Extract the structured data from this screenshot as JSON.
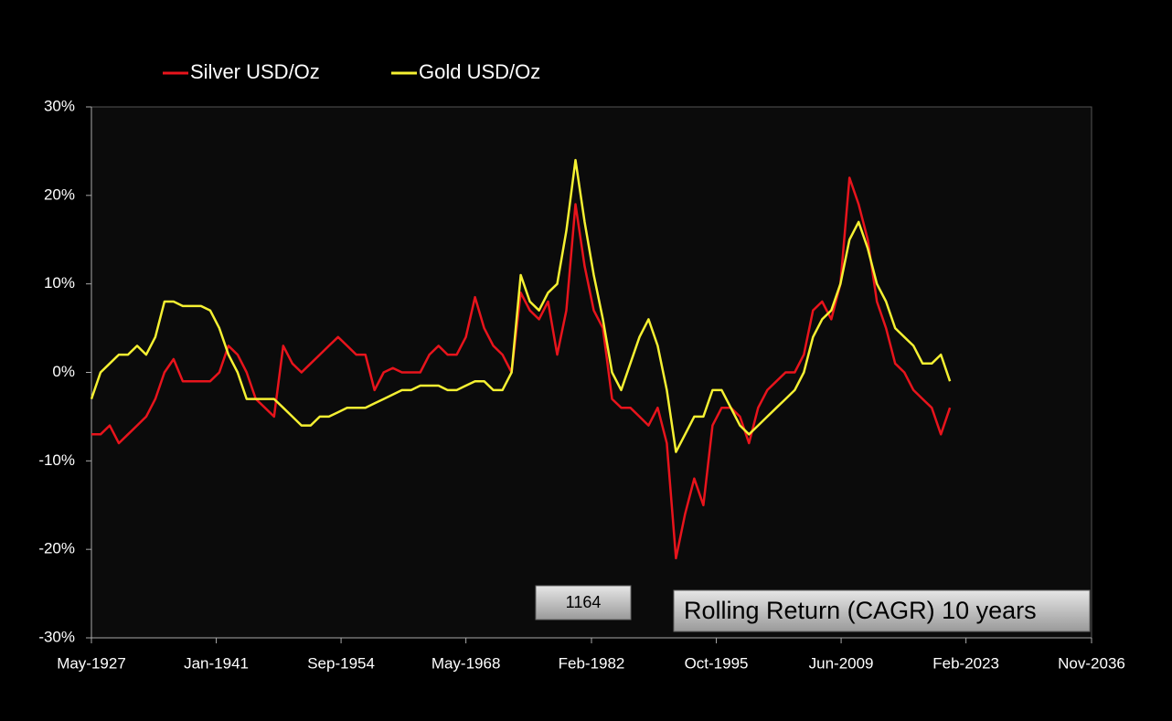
{
  "chart_data": {
    "type": "line",
    "annotations": [
      "1164",
      "Rolling Return (CAGR) 10 years"
    ],
    "x": [
      "1927-05",
      "1928-05",
      "1929-05",
      "1930-05",
      "1931-05",
      "1932-05",
      "1933-05",
      "1934-05",
      "1935-05",
      "1936-05",
      "1937-05",
      "1938-05",
      "1939-05",
      "1940-05",
      "1941-05",
      "1942-05",
      "1943-05",
      "1944-05",
      "1945-05",
      "1946-05",
      "1947-05",
      "1948-05",
      "1949-05",
      "1950-05",
      "1951-05",
      "1952-05",
      "1953-05",
      "1954-05",
      "1955-05",
      "1956-05",
      "1957-05",
      "1958-05",
      "1959-05",
      "1960-05",
      "1961-05",
      "1962-05",
      "1963-05",
      "1964-05",
      "1965-05",
      "1966-05",
      "1967-05",
      "1968-05",
      "1969-05",
      "1970-05",
      "1971-05",
      "1972-05",
      "1973-05",
      "1974-05",
      "1975-05",
      "1976-05",
      "1977-05",
      "1978-05",
      "1979-05",
      "1980-05",
      "1981-05",
      "1982-05",
      "1983-05",
      "1984-05",
      "1985-05",
      "1986-05",
      "1987-05",
      "1988-05",
      "1989-05",
      "1990-05",
      "1991-05",
      "1992-05",
      "1993-05",
      "1994-05",
      "1995-05",
      "1996-05",
      "1997-05",
      "1998-05",
      "1999-05",
      "2000-05",
      "2001-05",
      "2002-05",
      "2003-05",
      "2004-05",
      "2005-05",
      "2006-05",
      "2007-05",
      "2008-05",
      "2009-05",
      "2010-05",
      "2011-05",
      "2012-05",
      "2013-05",
      "2014-05",
      "2015-05",
      "2016-05",
      "2017-05",
      "2018-05",
      "2019-05",
      "2020-05",
      "2021-05"
    ],
    "series": [
      {
        "name": "Silver USD/Oz",
        "color": "#e8141c",
        "values": [
          -7,
          -7,
          -6,
          -8,
          -7,
          -6,
          -5,
          -3,
          0,
          1.5,
          -1,
          -1,
          -1,
          -1,
          0,
          3,
          2,
          0,
          -3,
          -4,
          -5,
          3,
          1,
          0,
          1,
          2,
          3,
          4,
          3,
          2,
          2,
          -2,
          0,
          0.5,
          0,
          0,
          0,
          2,
          3,
          2,
          2,
          4,
          8.5,
          5,
          3,
          2,
          0,
          9,
          7,
          6,
          8,
          2,
          7,
          19,
          12,
          7,
          5,
          -3,
          -4,
          -4,
          -5,
          -6,
          -4,
          -8,
          -21,
          -16,
          -12,
          -15,
          -6,
          -4,
          -4,
          -5,
          -8,
          -4,
          -2,
          -1,
          0,
          0,
          2,
          7,
          8,
          6,
          10,
          22,
          19,
          15,
          8,
          5,
          1,
          0,
          -2,
          -3,
          -4,
          -7,
          -4
        ]
      },
      {
        "name": "Gold USD/Oz",
        "color": "#f5f032",
        "values": [
          -3,
          0,
          1,
          2,
          2,
          3,
          2,
          4,
          8,
          8,
          7.5,
          7.5,
          7.5,
          7,
          5,
          2,
          0,
          -3,
          -3,
          -3,
          -3,
          -4,
          -5,
          -6,
          -6,
          -5,
          -5,
          -4.5,
          -4,
          -4,
          -4,
          -3.5,
          -3,
          -2.5,
          -2,
          -2,
          -1.5,
          -1.5,
          -1.5,
          -2,
          -2,
          -1.5,
          -1,
          -1,
          -2,
          -2,
          0,
          11,
          8,
          7,
          9,
          10,
          16,
          24,
          17,
          11,
          6,
          0,
          -2,
          1,
          4,
          6,
          3,
          -2,
          -9,
          -7,
          -5,
          -5,
          -2,
          -2,
          -4,
          -6,
          -7,
          -6,
          -5,
          -4,
          -3,
          -2,
          0,
          4,
          6,
          7,
          10,
          15,
          17,
          14,
          10,
          8,
          5,
          4,
          3,
          1,
          1,
          2,
          -1
        ]
      }
    ],
    "xlim": [
      "1927-05",
      "2036-11"
    ],
    "xticks": [
      {
        "value": "1927-05",
        "label": "May-1927"
      },
      {
        "value": "1941-01",
        "label": "Jan-1941"
      },
      {
        "value": "1954-09",
        "label": "Sep-1954"
      },
      {
        "value": "1968-05",
        "label": "May-1968"
      },
      {
        "value": "1982-02",
        "label": "Feb-1982"
      },
      {
        "value": "1995-10",
        "label": "Oct-1995"
      },
      {
        "value": "2009-06",
        "label": "Jun-2009"
      },
      {
        "value": "2023-02",
        "label": "Feb-2023"
      },
      {
        "value": "2036-11",
        "label": "Nov-2036"
      }
    ],
    "ylim": [
      -30,
      30
    ],
    "yticks": [
      {
        "value": -30,
        "label": "-30%"
      },
      {
        "value": -20,
        "label": "-20%"
      },
      {
        "value": -10,
        "label": "-10%"
      },
      {
        "value": 0,
        "label": "0%"
      },
      {
        "value": 10,
        "label": "10%"
      },
      {
        "value": 20,
        "label": "20%"
      },
      {
        "value": 30,
        "label": "30%"
      }
    ],
    "legend": "top"
  }
}
